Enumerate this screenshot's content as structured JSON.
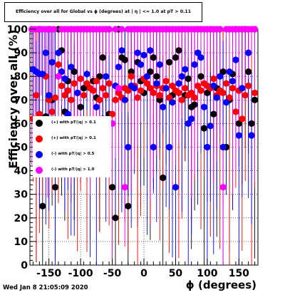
{
  "chart_data": {
    "type": "scatter",
    "title": "Efficiency over all for Global vs ϕ (degrees) at | η | <= 1.0 at pT > 0.11",
    "xlabel": "ϕ (degrees)",
    "ylabel": "Efficiency over all (%)",
    "xlim": [
      -180,
      180
    ],
    "ylim": [
      0,
      100
    ],
    "x_ticks": [
      "-150",
      "-100",
      "-50",
      "0",
      "50",
      "100",
      "150"
    ],
    "y_ticks": [
      "0",
      "10",
      "20",
      "30",
      "40",
      "50",
      "60",
      "70",
      "80",
      "90",
      "100"
    ],
    "grid": true,
    "legend_position": "middle-left",
    "series": [
      {
        "name": "(+) with pT/|q| > 0.1",
        "color": "#000000",
        "points": [
          [
            -177,
            100
          ],
          [
            -170,
            60
          ],
          [
            -165,
            100
          ],
          [
            -160,
            25
          ],
          [
            -155,
            63
          ],
          [
            -150,
            100
          ],
          [
            -145,
            70
          ],
          [
            -140,
            33
          ],
          [
            -135,
            100
          ],
          [
            -130,
            91
          ],
          [
            -125,
            65
          ],
          [
            -120,
            78
          ],
          [
            -115,
            100
          ],
          [
            -110,
            82
          ],
          [
            -105,
            100
          ],
          [
            -100,
            67
          ],
          [
            -95,
            75
          ],
          [
            -90,
            100
          ],
          [
            -85,
            60
          ],
          [
            -80,
            78
          ],
          [
            -75,
            71
          ],
          [
            -70,
            80
          ],
          [
            -65,
            88
          ],
          [
            -60,
            100
          ],
          [
            -55,
            64
          ],
          [
            -50,
            33
          ],
          [
            -45,
            20
          ],
          [
            -40,
            100
          ],
          [
            -35,
            88
          ],
          [
            -30,
            87
          ],
          [
            -25,
            25
          ],
          [
            -20,
            82
          ],
          [
            -15,
            100
          ],
          [
            -10,
            86
          ],
          [
            -5,
            78
          ],
          [
            0,
            73
          ],
          [
            5,
            100
          ],
          [
            10,
            82
          ],
          [
            15,
            88
          ],
          [
            20,
            80
          ],
          [
            25,
            70
          ],
          [
            30,
            37
          ],
          [
            35,
            100
          ],
          [
            40,
            86
          ],
          [
            45,
            72
          ],
          [
            50,
            88
          ],
          [
            55,
            91
          ],
          [
            60,
            100
          ],
          [
            65,
            72
          ],
          [
            70,
            79
          ],
          [
            75,
            67
          ],
          [
            80,
            68
          ],
          [
            85,
            100
          ],
          [
            90,
            80
          ],
          [
            95,
            58
          ],
          [
            100,
            73
          ],
          [
            105,
            100
          ],
          [
            110,
            64
          ],
          [
            115,
            75
          ],
          [
            120,
            100
          ],
          [
            125,
            82
          ],
          [
            130,
            50
          ],
          [
            135,
            70
          ],
          [
            140,
            81
          ],
          [
            145,
            100
          ],
          [
            150,
            60
          ],
          [
            155,
            100
          ],
          [
            160,
            100
          ],
          [
            165,
            82
          ],
          [
            170,
            60
          ],
          [
            175,
            70
          ]
        ]
      },
      {
        "name": "(+) with pT/|q| > 0.1",
        "color": "#ff0000",
        "points": [
          [
            -175,
            62
          ],
          [
            -170,
            72
          ],
          [
            -165,
            64
          ],
          [
            -160,
            60
          ],
          [
            -155,
            80
          ],
          [
            -150,
            70
          ],
          [
            -145,
            65
          ],
          [
            -140,
            71
          ],
          [
            -135,
            85
          ],
          [
            -130,
            76
          ],
          [
            -125,
            72
          ],
          [
            -120,
            74
          ],
          [
            -115,
            70
          ],
          [
            -110,
            77
          ],
          [
            -105,
            73
          ],
          [
            -100,
            79
          ],
          [
            -95,
            72
          ],
          [
            -90,
            77
          ],
          [
            -85,
            75
          ],
          [
            -80,
            74
          ],
          [
            -75,
            78
          ],
          [
            -70,
            70
          ],
          [
            -65,
            75
          ],
          [
            -60,
            72
          ],
          [
            -55,
            77
          ],
          [
            -50,
            64
          ],
          [
            -45,
            70
          ],
          [
            -40,
            73
          ],
          [
            -35,
            71
          ],
          [
            -30,
            75
          ],
          [
            -25,
            74
          ],
          [
            -20,
            80
          ],
          [
            -15,
            76
          ],
          [
            -10,
            71
          ],
          [
            -5,
            74
          ],
          [
            0,
            79
          ],
          [
            5,
            77
          ],
          [
            10,
            75
          ],
          [
            15,
            73
          ],
          [
            20,
            76
          ],
          [
            25,
            72
          ],
          [
            30,
            75
          ],
          [
            35,
            78
          ],
          [
            40,
            71
          ],
          [
            45,
            76
          ],
          [
            50,
            74
          ],
          [
            55,
            73
          ],
          [
            60,
            70
          ],
          [
            65,
            75
          ],
          [
            70,
            72
          ],
          [
            75,
            73
          ],
          [
            80,
            71
          ],
          [
            85,
            76
          ],
          [
            90,
            74
          ],
          [
            95,
            77
          ],
          [
            100,
            76
          ],
          [
            105,
            75
          ],
          [
            110,
            79
          ],
          [
            115,
            72
          ],
          [
            120,
            74
          ],
          [
            125,
            73
          ],
          [
            130,
            77
          ],
          [
            135,
            71
          ],
          [
            140,
            75
          ],
          [
            145,
            65
          ],
          [
            150,
            74
          ],
          [
            155,
            62
          ],
          [
            160,
            72
          ],
          [
            165,
            76
          ],
          [
            170,
            55
          ],
          [
            175,
            73
          ]
        ]
      },
      {
        "name": "(-) with pT/|q| > 0.5",
        "color": "#0000ff",
        "points": [
          [
            -175,
            83
          ],
          [
            -170,
            82
          ],
          [
            -165,
            81
          ],
          [
            -160,
            81
          ],
          [
            -155,
            90
          ],
          [
            -150,
            72
          ],
          [
            -145,
            86
          ],
          [
            -140,
            56
          ],
          [
            -135,
            90
          ],
          [
            -130,
            82
          ],
          [
            -125,
            79
          ],
          [
            -120,
            64
          ],
          [
            -115,
            84
          ],
          [
            -110,
            60
          ],
          [
            -105,
            73
          ],
          [
            -100,
            100
          ],
          [
            -95,
            100
          ],
          [
            -90,
            81
          ],
          [
            -85,
            58
          ],
          [
            -80,
            100
          ],
          [
            -75,
            67
          ],
          [
            -70,
            100
          ],
          [
            -65,
            62
          ],
          [
            -60,
            80
          ],
          [
            -55,
            100
          ],
          [
            -50,
            60
          ],
          [
            -45,
            76
          ],
          [
            -40,
            84
          ],
          [
            -35,
            91
          ],
          [
            -30,
            70
          ],
          [
            -25,
            50
          ],
          [
            -20,
            76
          ],
          [
            -15,
            75
          ],
          [
            -10,
            90
          ],
          [
            -5,
            85
          ],
          [
            0,
            89
          ],
          [
            5,
            80
          ],
          [
            10,
            91
          ],
          [
            15,
            50
          ],
          [
            20,
            77
          ],
          [
            25,
            85
          ],
          [
            30,
            67
          ],
          [
            35,
            75
          ],
          [
            40,
            50
          ],
          [
            45,
            69
          ],
          [
            50,
            33
          ],
          [
            55,
            77
          ],
          [
            60,
            80
          ],
          [
            65,
            83
          ],
          [
            70,
            60
          ],
          [
            75,
            62
          ],
          [
            80,
            85
          ],
          [
            85,
            90
          ],
          [
            90,
            88
          ],
          [
            95,
            67
          ],
          [
            100,
            50
          ],
          [
            105,
            59
          ],
          [
            110,
            76
          ],
          [
            115,
            71
          ],
          [
            120,
            80
          ],
          [
            125,
            50
          ],
          [
            130,
            69
          ],
          [
            135,
            82
          ],
          [
            140,
            78
          ],
          [
            145,
            87
          ],
          [
            150,
            55
          ],
          [
            155,
            75
          ],
          [
            160,
            100
          ],
          [
            165,
            90
          ],
          [
            170,
            55
          ],
          [
            175,
            100
          ]
        ]
      },
      {
        "name": "(-) with pT/|q| > 1.0",
        "color": "#ff00ff",
        "points": [
          [
            -177,
            100
          ],
          [
            -172,
            100
          ],
          [
            -167,
            100
          ],
          [
            -162,
            100
          ],
          [
            -157,
            100
          ],
          [
            -152,
            100
          ],
          [
            -147,
            100
          ],
          [
            -142,
            100
          ],
          [
            -135,
            80
          ],
          [
            -130,
            100
          ],
          [
            -125,
            100
          ],
          [
            -120,
            100
          ],
          [
            -115,
            100
          ],
          [
            -110,
            100
          ],
          [
            -105,
            100
          ],
          [
            -100,
            100
          ],
          [
            -95,
            100
          ],
          [
            -90,
            100
          ],
          [
            -85,
            100
          ],
          [
            -80,
            100
          ],
          [
            -75,
            100
          ],
          [
            -70,
            100
          ],
          [
            -65,
            100
          ],
          [
            -60,
            100
          ],
          [
            -55,
            100
          ],
          [
            -50,
            60
          ],
          [
            -45,
            100
          ],
          [
            -40,
            75
          ],
          [
            -35,
            100
          ],
          [
            -30,
            33
          ],
          [
            -25,
            100
          ],
          [
            -20,
            100
          ],
          [
            -15,
            100
          ],
          [
            -10,
            100
          ],
          [
            -5,
            100
          ],
          [
            0,
            100
          ],
          [
            5,
            100
          ],
          [
            10,
            100
          ],
          [
            15,
            100
          ],
          [
            20,
            100
          ],
          [
            25,
            100
          ],
          [
            30,
            100
          ],
          [
            35,
            100
          ],
          [
            40,
            100
          ],
          [
            45,
            100
          ],
          [
            50,
            100
          ],
          [
            55,
            100
          ],
          [
            60,
            100
          ],
          [
            65,
            100
          ],
          [
            70,
            100
          ],
          [
            75,
            100
          ],
          [
            80,
            100
          ],
          [
            85,
            100
          ],
          [
            90,
            100
          ],
          [
            95,
            100
          ],
          [
            100,
            100
          ],
          [
            105,
            100
          ],
          [
            110,
            100
          ],
          [
            115,
            100
          ],
          [
            120,
            100
          ],
          [
            125,
            33
          ],
          [
            130,
            100
          ],
          [
            135,
            100
          ],
          [
            140,
            100
          ],
          [
            145,
            100
          ],
          [
            150,
            100
          ],
          [
            155,
            100
          ],
          [
            160,
            100
          ],
          [
            165,
            100
          ],
          [
            170,
            100
          ],
          [
            175,
            100
          ]
        ]
      }
    ]
  },
  "footer": {
    "timestamp": "Wed Jan  8 21:05:09 2020"
  }
}
